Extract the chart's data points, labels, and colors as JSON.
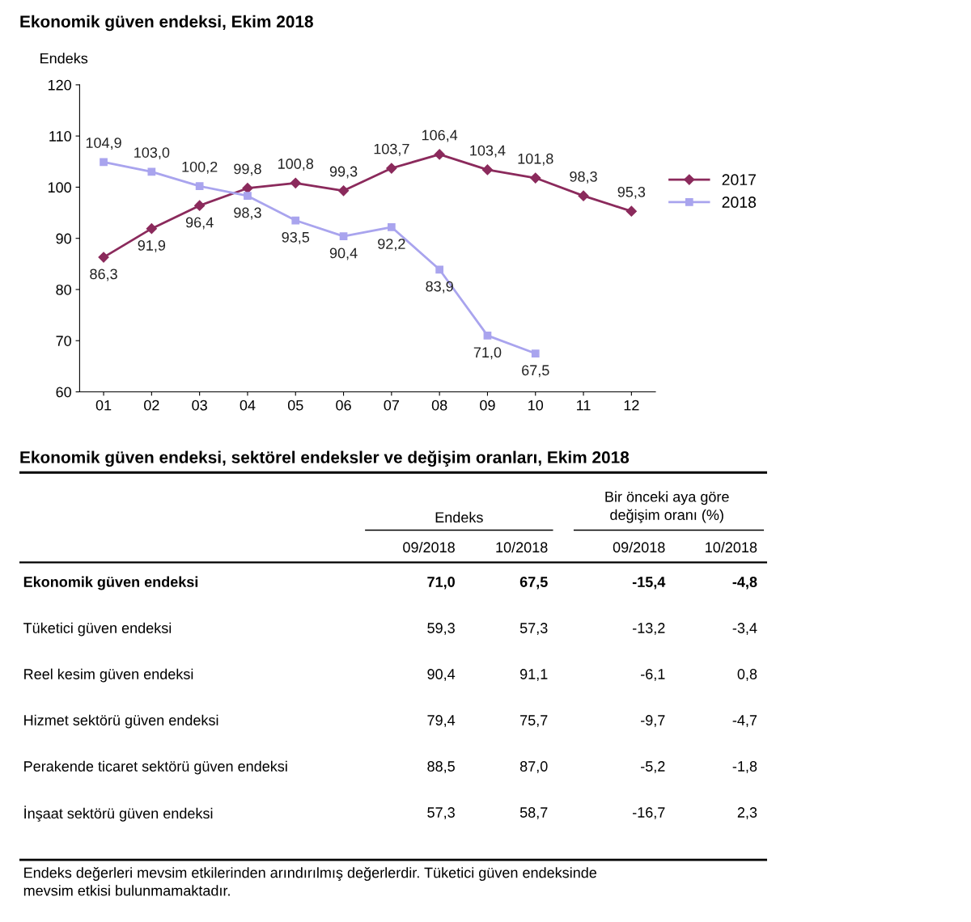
{
  "chart_data": [
    {
      "type": "line",
      "title": "Ekonomik güven endeksi, Ekim 2018",
      "ylabel": "Endeks",
      "categories": [
        "01",
        "02",
        "03",
        "04",
        "05",
        "06",
        "07",
        "08",
        "09",
        "10",
        "11",
        "12"
      ],
      "series": [
        {
          "name": "2017",
          "color": "#8b2a5c",
          "marker": "diamond",
          "values": [
            86.3,
            91.9,
            96.4,
            99.8,
            100.8,
            99.3,
            103.7,
            106.4,
            103.4,
            101.8,
            98.3,
            95.3
          ],
          "value_labels": [
            "86,3",
            "91,9",
            "96,4",
            "99,8",
            "100,8",
            "99,3",
            "103,7",
            "106,4",
            "103,4",
            "101,8",
            "98,3",
            "95,3"
          ]
        },
        {
          "name": "2018",
          "color": "#a9a4ee",
          "marker": "square",
          "values": [
            104.9,
            103.0,
            100.2,
            98.3,
            93.5,
            90.4,
            92.2,
            83.9,
            71.0,
            67.5,
            null,
            null
          ],
          "value_labels": [
            "104,9",
            "103,0",
            "100,2",
            "98,3",
            "93,5",
            "90,4",
            "92,2",
            "83,9",
            "71,0",
            "67,5",
            null,
            null
          ]
        }
      ],
      "ylim": [
        60,
        120
      ],
      "yticks": [
        60,
        70,
        80,
        90,
        100,
        110,
        120
      ],
      "grid": false,
      "legend": "right",
      "line_style": "solid"
    },
    {
      "type": "other",
      "title": "Ekonomik güven endeksi, sektörel endeksler ve değişim oranları, Ekim 2018",
      "categories": [
        "09/2018",
        "10/2018",
        "09/2018",
        "10/2018"
      ],
      "y_categories": [
        "Ekonomik güven endeksi",
        "Tüketici güven endeksi",
        "Reel kesim güven endeksi",
        "Hizmet sektörü güven endeksi",
        "Perakende ticaret sektörü güven endeksi",
        "İnşaat sektörü güven endeksi"
      ],
      "cell_labels": [
        [
          "71,0",
          "67,5",
          "-15,4",
          "-4,8"
        ],
        [
          "59,3",
          "57,3",
          "-13,2",
          "-3,4"
        ],
        [
          "90,4",
          "91,1",
          "-6,1",
          "0,8"
        ],
        [
          "79,4",
          "75,7",
          "-9,7",
          "-4,7"
        ],
        [
          "88,5",
          "87,0",
          "-5,2",
          "-1,8"
        ],
        [
          "57,3",
          "58,7",
          "-16,7",
          "2,3"
        ]
      ],
      "annotations": [
        "Endeks",
        "Bir önceki aya göre\ndeğişim oranı (%)",
        "Endeks değerleri mevsim etkilerinden arındırılmış değerlerdir. Tüketici güven endeksinde\nmevsim etkisi bulunmamaktadır."
      ]
    }
  ]
}
